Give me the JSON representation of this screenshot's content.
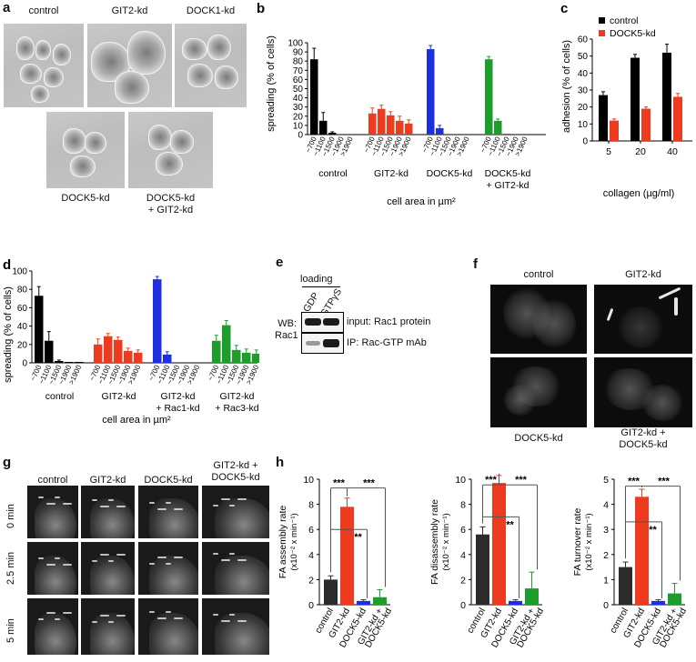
{
  "panel_a": {
    "letter": "a",
    "images": [
      "control",
      "GIT2-kd",
      "DOCK1-kd",
      "DOCK5-kd",
      "DOCK5-kd\n+ GIT2-kd"
    ]
  },
  "panel_b": {
    "letter": "b",
    "ylabel": "spreading (% of cells)",
    "xlabel": "cell area in µm²",
    "yticks": [
      "0",
      "10",
      "20",
      "30",
      "40",
      "50",
      "60",
      "70",
      "80",
      "90",
      "100"
    ],
    "bin_labels": [
      "~700",
      "~1100",
      "~1500",
      "~1900",
      ">1900"
    ],
    "groups": [
      "control",
      "GIT2-kd",
      "DOCK5-kd",
      "DOCK5-kd\n+ GIT2-kd"
    ],
    "colors": [
      "#000000",
      "#ee3a1e",
      "#1d2fe0",
      "#1c9e2a"
    ]
  },
  "panel_c": {
    "letter": "c",
    "ylabel": "adhesion (% of cells)",
    "xlabel": "collagen (µg/ml)",
    "legend": [
      "control",
      "DOCK5-kd"
    ],
    "yticks": [
      "0",
      "10",
      "20",
      "30",
      "40",
      "50",
      "60"
    ],
    "categories": [
      "5",
      "20",
      "40"
    ]
  },
  "panel_d": {
    "letter": "d",
    "ylabel": "spreading (% of cells)",
    "xlabel": "cell area in µm²",
    "yticks": [
      "0",
      "20",
      "40",
      "60",
      "80",
      "100"
    ],
    "bin_labels": [
      "~700",
      "~1100",
      "~1500",
      "~1900",
      ">1900"
    ],
    "groups": [
      "control",
      "GIT2-kd",
      "GIT2-kd\n+ Rac1-kd",
      "GIT2-kd\n+ Rac3-kd"
    ]
  },
  "panel_e": {
    "letter": "e",
    "loading": "loading",
    "lanes": [
      "GDP",
      "GTPγS"
    ],
    "wb": "WB:\nRac1",
    "row1": "input: Rac1 protein",
    "row2": "IP: Rac-GTP mAb"
  },
  "panel_f": {
    "letter": "f",
    "top_labels": [
      "control",
      "GIT2-kd"
    ],
    "bottom_labels": [
      "DOCK5-kd",
      "GIT2-kd +\nDOCK5-kd"
    ]
  },
  "panel_g": {
    "letter": "g",
    "columns": [
      "control",
      "GIT2-kd",
      "DOCK5-kd",
      "GIT2-kd +\nDOCK5-kd"
    ],
    "rows": [
      "0 min",
      "2.5 min",
      "5 min"
    ]
  },
  "panel_h": {
    "letter": "h",
    "categories": [
      "control",
      "GIT2-kd",
      "DOCK5-kd",
      "GIT2-kd +\nDOCK5-kd"
    ],
    "sig": [
      "***",
      "***",
      "**"
    ],
    "charts": [
      {
        "ylabel": "FA assembly rate",
        "unit": "(x10⁻² x min⁻¹)",
        "yticks": [
          "0",
          "2",
          "4",
          "6",
          "8",
          "10"
        ]
      },
      {
        "ylabel": "FA disassembly rate",
        "unit": "(x10⁻² x min⁻¹)",
        "yticks": [
          "0",
          "2",
          "4",
          "6",
          "8",
          "10"
        ]
      },
      {
        "ylabel": "FA turnover rate",
        "unit": "(x10⁻² x min⁻¹)",
        "yticks": [
          "0",
          "1",
          "2",
          "3",
          "4",
          "5"
        ]
      }
    ]
  },
  "chart_data": [
    {
      "type": "bar",
      "panel": "b",
      "title": "",
      "xlabel": "cell area in µm²",
      "ylabel": "spreading (% of cells)",
      "ylim": [
        0,
        100
      ],
      "categories": [
        "~700",
        "~1100",
        "~1500",
        "~1900",
        ">1900"
      ],
      "series": [
        {
          "name": "control",
          "values": [
            82,
            15,
            2,
            0,
            0
          ],
          "errors": [
            12,
            9,
            1,
            0,
            0
          ]
        },
        {
          "name": "GIT2-kd",
          "values": [
            23,
            28,
            21,
            15,
            12
          ],
          "errors": [
            6,
            4,
            4,
            5,
            4
          ]
        },
        {
          "name": "DOCK5-kd",
          "values": [
            93,
            7,
            0,
            0,
            0
          ],
          "errors": [
            4,
            3,
            0,
            0,
            0
          ]
        },
        {
          "name": "DOCK5-kd + GIT2-kd",
          "values": [
            82,
            15,
            1,
            0,
            0
          ],
          "errors": [
            3,
            2,
            0,
            0,
            0
          ]
        }
      ]
    },
    {
      "type": "bar",
      "panel": "c",
      "title": "",
      "xlabel": "collagen (µg/ml)",
      "ylabel": "adhesion (% of cells)",
      "ylim": [
        0,
        60
      ],
      "legend_placement": "top-left",
      "categories": [
        "5",
        "20",
        "40"
      ],
      "series": [
        {
          "name": "control",
          "values": [
            27,
            49,
            52
          ],
          "errors": [
            2,
            2,
            5
          ]
        },
        {
          "name": "DOCK5-kd",
          "values": [
            12,
            19,
            26
          ],
          "errors": [
            1,
            1,
            2
          ]
        }
      ]
    },
    {
      "type": "bar",
      "panel": "d",
      "title": "",
      "xlabel": "cell area in µm²",
      "ylabel": "spreading (% of cells)",
      "ylim": [
        0,
        100
      ],
      "categories": [
        "~700",
        "~1100",
        "~1500",
        "~1900",
        ">1900"
      ],
      "series": [
        {
          "name": "control",
          "values": [
            73,
            24,
            2,
            1,
            1
          ],
          "errors": [
            10,
            10,
            1,
            0,
            0
          ]
        },
        {
          "name": "GIT2-kd",
          "values": [
            20,
            29,
            25,
            13,
            11
          ],
          "errors": [
            6,
            3,
            3,
            3,
            3
          ]
        },
        {
          "name": "GIT2-kd + Rac1-kd",
          "values": [
            91,
            9,
            0,
            0,
            0
          ],
          "errors": [
            3,
            3,
            0,
            0,
            0
          ]
        },
        {
          "name": "GIT2-kd + Rac3-kd",
          "values": [
            24,
            41,
            14,
            11,
            10
          ],
          "errors": [
            6,
            5,
            5,
            4,
            4
          ]
        }
      ]
    },
    {
      "type": "bar",
      "panel": "h-assembly",
      "ylabel": "FA assembly rate (x10⁻² x min⁻¹)",
      "ylim": [
        0,
        10
      ],
      "categories": [
        "control",
        "GIT2-kd",
        "DOCK5-kd",
        "GIT2-kd + DOCK5-kd"
      ],
      "values": [
        2.0,
        7.8,
        0.3,
        0.6
      ],
      "errors": [
        0.3,
        0.7,
        0.1,
        0.6
      ]
    },
    {
      "type": "bar",
      "panel": "h-disassembly",
      "ylabel": "FA disassembly rate (x10⁻² x min⁻¹)",
      "ylim": [
        0,
        10
      ],
      "categories": [
        "control",
        "GIT2-kd",
        "DOCK5-kd",
        "GIT2-kd + DOCK5-kd"
      ],
      "values": [
        5.6,
        9.7,
        0.3,
        1.3
      ],
      "errors": [
        0.6,
        0.6,
        0.1,
        1.3
      ]
    },
    {
      "type": "bar",
      "panel": "h-turnover",
      "ylabel": "FA turnover rate (x10⁻² x min⁻¹)",
      "ylim": [
        0,
        5
      ],
      "categories": [
        "control",
        "GIT2-kd",
        "DOCK5-kd",
        "GIT2-kd + DOCK5-kd"
      ],
      "values": [
        1.5,
        4.3,
        0.15,
        0.45
      ],
      "errors": [
        0.2,
        0.3,
        0.05,
        0.4
      ]
    }
  ]
}
